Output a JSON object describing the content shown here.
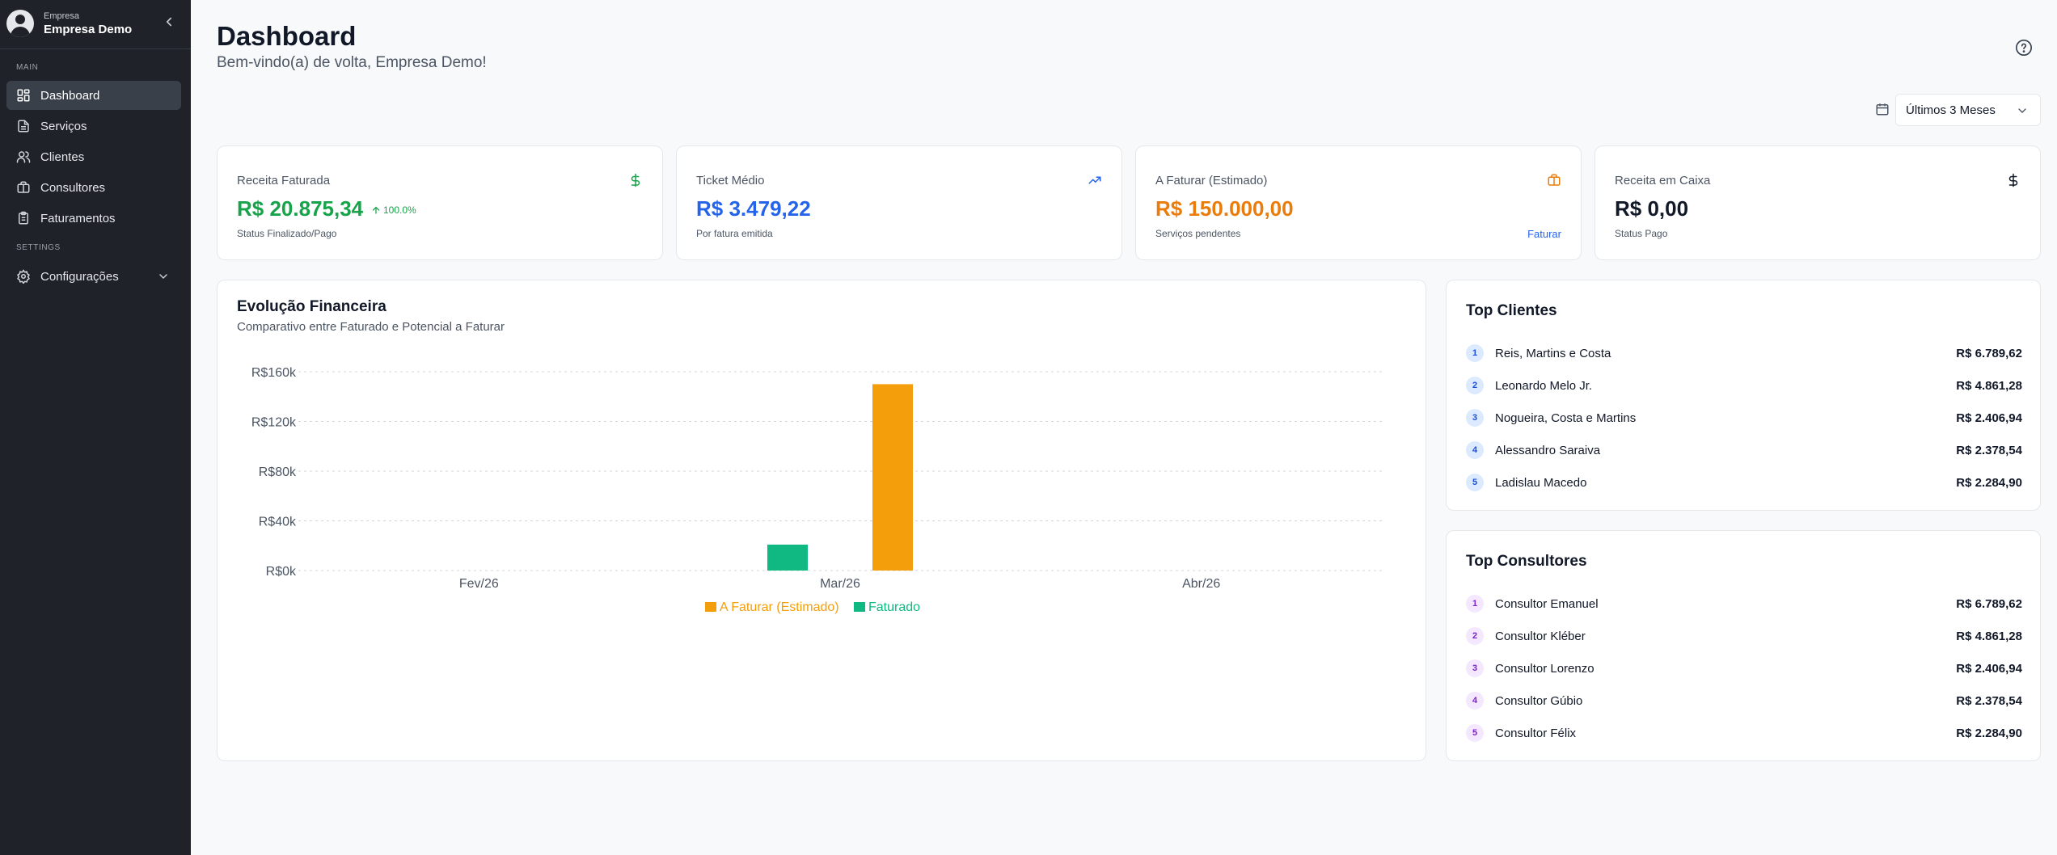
{
  "sidebar": {
    "company_label": "Empresa",
    "company_name": "Empresa Demo",
    "section_main": "MAIN",
    "section_settings": "SETTINGS",
    "items": [
      {
        "label": "Dashboard",
        "icon": "dashboard-icon"
      },
      {
        "label": "Serviços",
        "icon": "document-icon"
      },
      {
        "label": "Clientes",
        "icon": "users-icon"
      },
      {
        "label": "Consultores",
        "icon": "briefcase-icon"
      },
      {
        "label": "Faturamentos",
        "icon": "clipboard-icon"
      }
    ],
    "settings_item": {
      "label": "Configurações",
      "icon": "gear-icon"
    }
  },
  "header": {
    "title": "Dashboard",
    "subtitle": "Bem-vindo(a) de volta, Empresa Demo!"
  },
  "filter": {
    "selected": "Últimos 3 Meses"
  },
  "kpis": [
    {
      "label": "Receita Faturada",
      "value": "R$ 20.875,34",
      "delta": "100.0%",
      "footer": "Status Finalizado/Pago",
      "icon": "dollar-icon",
      "color": "#16a34a"
    },
    {
      "label": "Ticket Médio",
      "value": "R$ 3.479,22",
      "footer": "Por fatura emitida",
      "icon": "trending-up-icon",
      "color": "#2563eb"
    },
    {
      "label": "A Faturar (Estimado)",
      "value": "R$ 150.000,00",
      "footer": "Serviços pendentes",
      "link": "Faturar",
      "icon": "briefcase-icon",
      "color": "#ea7c0c"
    },
    {
      "label": "Receita em Caixa",
      "value": "R$ 0,00",
      "footer": "Status Pago",
      "icon": "dollar-icon",
      "color": "#111827"
    }
  ],
  "chart": {
    "title": "Evolução Financeira",
    "subtitle": "Comparativo entre Faturado e Potencial a Faturar"
  },
  "chart_data": {
    "type": "bar",
    "categories": [
      "Fev/26",
      "Mar/26",
      "Abr/26"
    ],
    "series": [
      {
        "name": "Faturado",
        "color": "#10b981",
        "values": [
          0,
          20875.34,
          0
        ]
      },
      {
        "name": "A Faturar (Estimado)",
        "color": "#f59e0b",
        "values": [
          0,
          150000,
          0
        ]
      }
    ],
    "legend_order": [
      "A Faturar (Estimado)",
      "Faturado"
    ],
    "y_ticks": [
      "R$0k",
      "R$40k",
      "R$80k",
      "R$120k",
      "R$160k"
    ],
    "ylim": [
      0,
      160000
    ],
    "grid": true,
    "legend_position": "bottom"
  },
  "top_clientes": {
    "title": "Top Clientes",
    "rows": [
      {
        "rank": "1",
        "name": "Reis, Martins e Costa",
        "value": "R$ 6.789,62"
      },
      {
        "rank": "2",
        "name": "Leonardo Melo Jr.",
        "value": "R$ 4.861,28"
      },
      {
        "rank": "3",
        "name": "Nogueira, Costa e Martins",
        "value": "R$ 2.406,94"
      },
      {
        "rank": "4",
        "name": "Alessandro Saraiva",
        "value": "R$ 2.378,54"
      },
      {
        "rank": "5",
        "name": "Ladislau Macedo",
        "value": "R$ 2.284,90"
      }
    ]
  },
  "top_consultores": {
    "title": "Top Consultores",
    "rows": [
      {
        "rank": "1",
        "name": "Consultor Emanuel",
        "value": "R$ 6.789,62"
      },
      {
        "rank": "2",
        "name": "Consultor Kléber",
        "value": "R$ 4.861,28"
      },
      {
        "rank": "3",
        "name": "Consultor Lorenzo",
        "value": "R$ 2.406,94"
      },
      {
        "rank": "4",
        "name": "Consultor Gúbio",
        "value": "R$ 2.378,54"
      },
      {
        "rank": "5",
        "name": "Consultor Félix",
        "value": "R$ 2.284,90"
      }
    ]
  }
}
